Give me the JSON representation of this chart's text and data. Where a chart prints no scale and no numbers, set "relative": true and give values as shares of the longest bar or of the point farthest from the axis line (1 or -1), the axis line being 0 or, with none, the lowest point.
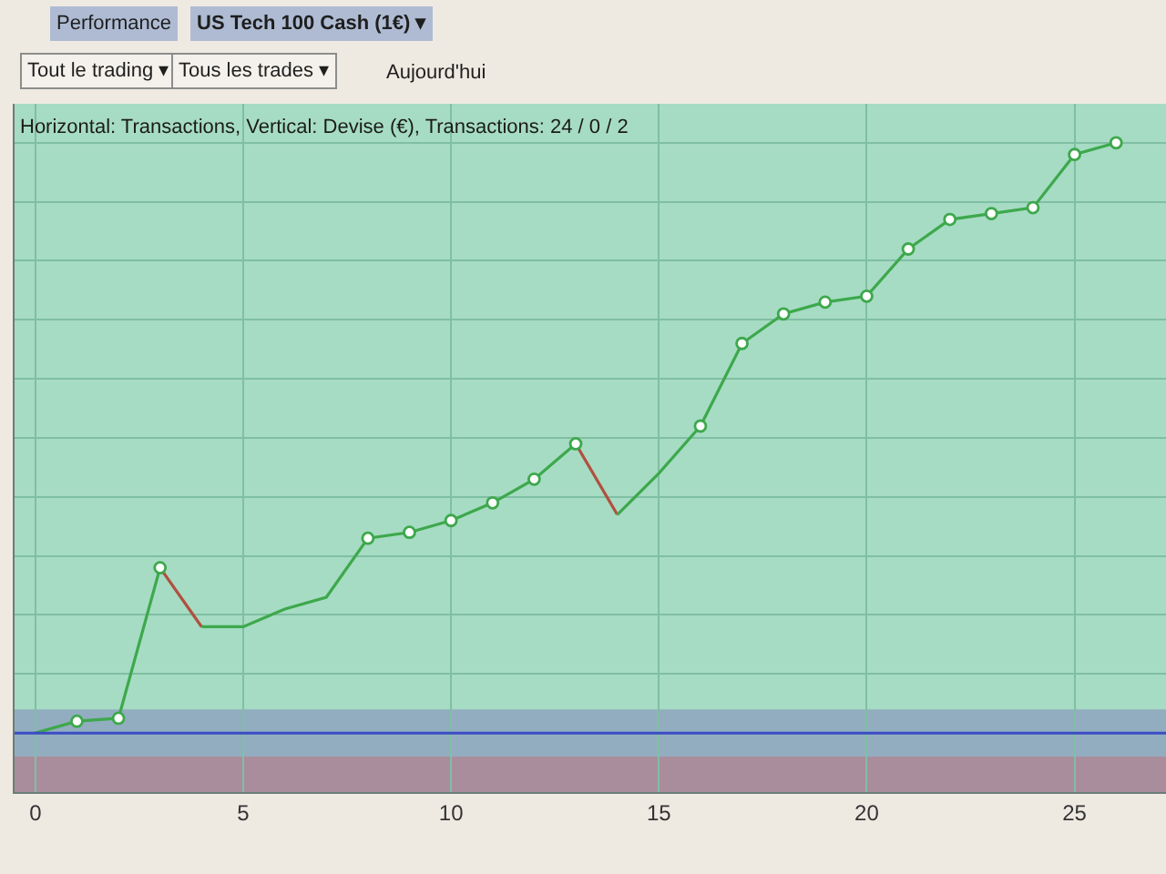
{
  "chart_data": {
    "type": "line",
    "title": "Horizontal: Transactions, Vertical: Devise (€), Transactions: 24 / 0 / 2",
    "annotations": [
      "Performance",
      "US Tech 100 Cash (1€) ▾",
      "Tout le trading ▾",
      "Tous les trades ▾",
      "Aujourd'hui"
    ],
    "relative": true,
    "xlim": [
      -0.5,
      27.2
    ],
    "xticks": [
      0,
      5,
      10,
      15,
      20,
      25
    ],
    "grid": true,
    "line_style": "solid",
    "series": [
      {
        "color": "#3da84c",
        "marker": "none",
        "x": [
          0,
          1,
          2,
          3
        ],
        "values": [
          0,
          0.02,
          0.025,
          0.28
        ]
      },
      {
        "color": "#b0503f",
        "marker": "none",
        "x": [
          3,
          4
        ],
        "values": [
          0.28,
          0.18
        ]
      },
      {
        "color": "#3da84c",
        "marker": "none",
        "x": [
          4,
          5,
          6,
          7,
          8,
          9,
          10,
          11,
          12,
          13
        ],
        "values": [
          0.18,
          0.18,
          0.21,
          0.23,
          0.33,
          0.34,
          0.36,
          0.39,
          0.43,
          0.49
        ]
      },
      {
        "color": "#b0503f",
        "marker": "none",
        "x": [
          13,
          14
        ],
        "values": [
          0.49,
          0.37
        ]
      },
      {
        "color": "#3da84c",
        "marker": "none",
        "x": [
          14,
          15,
          16,
          17,
          18,
          19,
          20,
          21,
          22,
          23,
          24,
          25,
          26
        ],
        "values": [
          0.37,
          0.44,
          0.52,
          0.66,
          0.71,
          0.73,
          0.74,
          0.82,
          0.87,
          0.88,
          0.89,
          0.98,
          1.0
        ]
      },
      {
        "type": "scatter",
        "color": "#3da84c",
        "marker": "circle",
        "x": [
          1,
          2,
          3,
          8,
          9,
          10,
          11,
          12,
          13,
          16,
          17,
          18,
          19,
          20,
          21,
          22,
          23,
          24,
          25,
          26
        ],
        "values": [
          0.02,
          0.025,
          0.28,
          0.33,
          0.34,
          0.36,
          0.39,
          0.43,
          0.49,
          0.52,
          0.66,
          0.71,
          0.73,
          0.74,
          0.82,
          0.87,
          0.88,
          0.89,
          0.98,
          1.0
        ]
      }
    ],
    "ref_lines": [
      {
        "axis": "y",
        "value": 0,
        "color": "#3b4cc4"
      }
    ],
    "bands": [
      {
        "axis": "y",
        "from": -0.04,
        "to": 0.04,
        "color": "#93adc0"
      },
      {
        "axis": "y",
        "from": -0.1,
        "to": -0.04,
        "color": "#a98d9c"
      }
    ]
  }
}
